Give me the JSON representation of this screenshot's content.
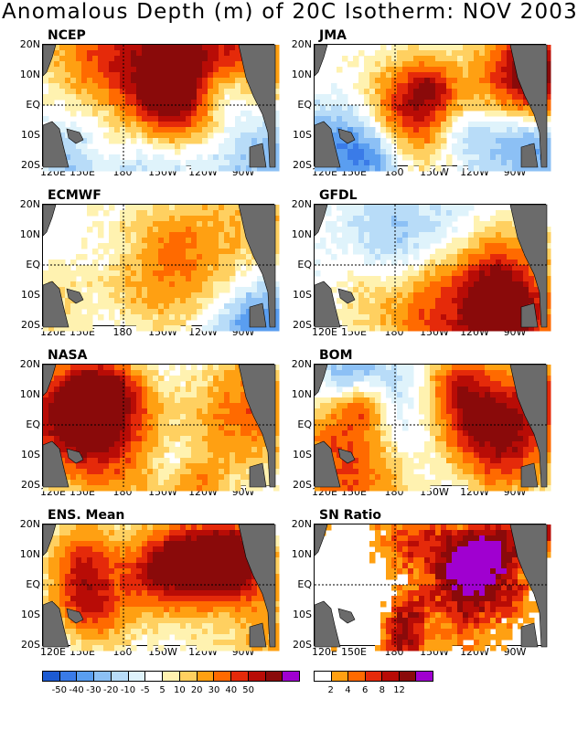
{
  "title": "Anomalous Depth (m) of 20C Isotherm: NOV 2003",
  "lat_labels": [
    "20N",
    "10N",
    "EQ",
    "10S",
    "20S"
  ],
  "lon_labels": [
    "120E",
    "150E",
    "180",
    "150W",
    "120W",
    "90W"
  ],
  "panels": [
    {
      "name": "NCEP",
      "type": "anomaly",
      "seed": 11
    },
    {
      "name": "JMA",
      "type": "anomaly",
      "seed": 23
    },
    {
      "name": "ECMWF",
      "type": "anomaly",
      "seed": 37
    },
    {
      "name": "GFDL",
      "type": "anomaly",
      "seed": 41
    },
    {
      "name": "NASA",
      "type": "anomaly",
      "seed": 53
    },
    {
      "name": "BOM",
      "type": "anomaly",
      "seed": 67
    },
    {
      "name": "ENS. Mean",
      "type": "anomaly",
      "seed": 79
    },
    {
      "name": "SN Ratio",
      "type": "snratio",
      "seed": 83
    }
  ],
  "anomaly_colorbar": {
    "colors": [
      "#1c5ad2",
      "#3a7be8",
      "#5a9ef0",
      "#8cc0f5",
      "#b8dcf8",
      "#dff3fb",
      "#ffffff",
      "#fff2b0",
      "#ffd060",
      "#ffa012",
      "#ff6a00",
      "#e52a0a",
      "#b80c06",
      "#8a0a0a",
      "#a000d0"
    ],
    "labels": [
      "-50",
      "-40",
      "-30",
      "-20",
      "-10",
      "-5",
      "5",
      "10",
      "20",
      "30",
      "40",
      "50"
    ]
  },
  "sn_colorbar": {
    "colors": [
      "#ffffff",
      "#ffa012",
      "#ff6a00",
      "#e52a0a",
      "#b80c06",
      "#8a0a0a",
      "#a000d0"
    ],
    "labels": [
      "2",
      "4",
      "6",
      "8",
      "12"
    ]
  },
  "land_color": "#6b6b6b"
}
